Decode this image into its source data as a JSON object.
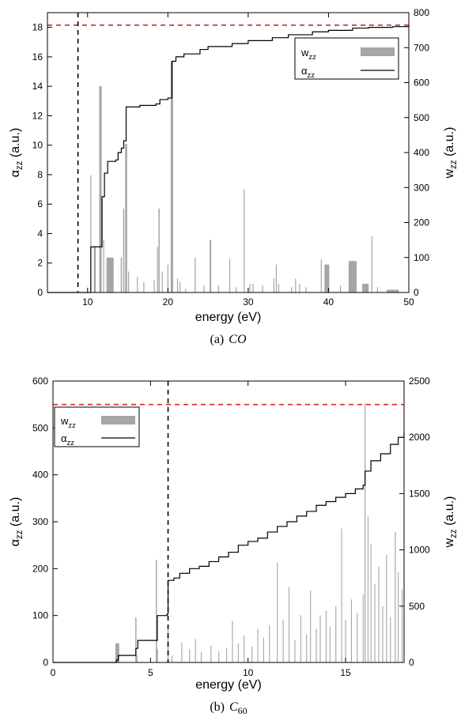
{
  "chart_data": [
    {
      "panel": "(a)",
      "type": "bar",
      "caption_prefix": "(a)",
      "caption_italic": "CO",
      "xlabel": "energy (eV)",
      "ylabel_left": {
        "main": "α",
        "sub": "zz",
        "unit": "(a.u.)"
      },
      "ylabel_right": {
        "main": "w",
        "sub": "zz",
        "unit": "(a.u.)"
      },
      "xlim": [
        5,
        50
      ],
      "ylim_left": [
        0,
        19
      ],
      "ylim_right": [
        0,
        800
      ],
      "xticks": [
        "10",
        "20",
        "30",
        "40",
        "50"
      ],
      "xtick_values": [
        10,
        20,
        30,
        40,
        50
      ],
      "yticks_left": [
        "0",
        "2",
        "4",
        "6",
        "8",
        "10",
        "12",
        "14",
        "16",
        "18"
      ],
      "ytick_values_left": [
        0,
        2,
        4,
        6,
        8,
        10,
        12,
        14,
        16,
        18
      ],
      "yticks_right": [
        "0",
        "100",
        "200",
        "300",
        "400",
        "500",
        "600",
        "700",
        "800"
      ],
      "ytick_values_right": [
        0,
        100,
        200,
        300,
        400,
        500,
        600,
        700,
        800
      ],
      "legend": {
        "position": "top-right",
        "entries": [
          {
            "main": "w",
            "sub": "zz",
            "kind": "bar"
          },
          {
            "main": "α",
            "sub": "zz",
            "kind": "line"
          }
        ]
      },
      "reference_lines": [
        {
          "orientation": "horizontal",
          "axis": "left",
          "value": 18.15,
          "color": "#dd2222",
          "style": "dashed"
        },
        {
          "orientation": "vertical",
          "value": 8.8,
          "color": "#000000",
          "style": "dashed"
        }
      ],
      "bar_color": "#a6a6a6",
      "line_color": "#000000",
      "w_zz_bars": [
        {
          "x": 10.4,
          "width": 0.12,
          "y": 335
        },
        {
          "x": 10.9,
          "width": 0.25,
          "y": 130
        },
        {
          "x": 11.6,
          "width": 0.3,
          "y": 590
        },
        {
          "x": 12.0,
          "width": 0.12,
          "y": 150
        },
        {
          "x": 12.8,
          "width": 0.9,
          "y": 100
        },
        {
          "x": 14.2,
          "width": 0.15,
          "y": 100
        },
        {
          "x": 14.5,
          "width": 0.15,
          "y": 240
        },
        {
          "x": 14.8,
          "width": 0.25,
          "y": 425
        },
        {
          "x": 15.1,
          "width": 0.12,
          "y": 60
        },
        {
          "x": 16.2,
          "width": 0.12,
          "y": 45
        },
        {
          "x": 17.0,
          "width": 0.12,
          "y": 30
        },
        {
          "x": 18.3,
          "width": 0.12,
          "y": 35
        },
        {
          "x": 18.7,
          "width": 0.12,
          "y": 130
        },
        {
          "x": 18.9,
          "width": 0.15,
          "y": 240
        },
        {
          "x": 19.3,
          "width": 0.12,
          "y": 60
        },
        {
          "x": 20.0,
          "width": 0.12,
          "y": 80
        },
        {
          "x": 20.5,
          "width": 0.3,
          "y": 660
        },
        {
          "x": 21.2,
          "width": 0.12,
          "y": 40
        },
        {
          "x": 21.5,
          "width": 0.12,
          "y": 30
        },
        {
          "x": 22.2,
          "width": 0.12,
          "y": 10
        },
        {
          "x": 23.4,
          "width": 0.12,
          "y": 100
        },
        {
          "x": 24.5,
          "width": 0.12,
          "y": 20
        },
        {
          "x": 25.3,
          "width": 0.2,
          "y": 150
        },
        {
          "x": 26.3,
          "width": 0.12,
          "y": 20
        },
        {
          "x": 27.7,
          "width": 0.12,
          "y": 95
        },
        {
          "x": 28.5,
          "width": 0.12,
          "y": 15
        },
        {
          "x": 29.5,
          "width": 0.12,
          "y": 295
        },
        {
          "x": 30.2,
          "width": 0.12,
          "y": 25
        },
        {
          "x": 30.6,
          "width": 0.12,
          "y": 25
        },
        {
          "x": 31.8,
          "width": 0.12,
          "y": 20
        },
        {
          "x": 33.2,
          "width": 0.12,
          "y": 40
        },
        {
          "x": 33.5,
          "width": 0.12,
          "y": 80
        },
        {
          "x": 33.8,
          "width": 0.12,
          "y": 25
        },
        {
          "x": 35.4,
          "width": 0.12,
          "y": 15
        },
        {
          "x": 35.9,
          "width": 0.12,
          "y": 40
        },
        {
          "x": 36.4,
          "width": 0.12,
          "y": 25
        },
        {
          "x": 37.2,
          "width": 0.12,
          "y": 15
        },
        {
          "x": 39.1,
          "width": 0.12,
          "y": 95
        },
        {
          "x": 39.8,
          "width": 0.6,
          "y": 80
        },
        {
          "x": 41.5,
          "width": 0.12,
          "y": 20
        },
        {
          "x": 43.0,
          "width": 1.0,
          "y": 90
        },
        {
          "x": 44.6,
          "width": 0.8,
          "y": 25
        },
        {
          "x": 45.4,
          "width": 0.12,
          "y": 160
        },
        {
          "x": 46.1,
          "width": 0.12,
          "y": 15
        },
        {
          "x": 48.0,
          "width": 1.5,
          "y": 8
        }
      ],
      "alpha_zz_step": [
        [
          5,
          0
        ],
        [
          10.4,
          0
        ],
        [
          10.4,
          3.1
        ],
        [
          11.5,
          3.1
        ],
        [
          11.8,
          6.5
        ],
        [
          12.1,
          8.1
        ],
        [
          12.5,
          8.9
        ],
        [
          13.5,
          9.0
        ],
        [
          13.8,
          9.5
        ],
        [
          14.2,
          9.8
        ],
        [
          14.5,
          10.3
        ],
        [
          14.8,
          12.6
        ],
        [
          16.5,
          12.7
        ],
        [
          18.5,
          12.8
        ],
        [
          19.0,
          13.1
        ],
        [
          20.0,
          13.2
        ],
        [
          20.5,
          15.7
        ],
        [
          21.0,
          16.0
        ],
        [
          22.0,
          16.2
        ],
        [
          24.0,
          16.5
        ],
        [
          25.0,
          16.7
        ],
        [
          28.0,
          16.9
        ],
        [
          30.0,
          17.1
        ],
        [
          33.0,
          17.3
        ],
        [
          35.0,
          17.5
        ],
        [
          38.0,
          17.7
        ],
        [
          40.0,
          17.8
        ],
        [
          43.0,
          17.95
        ],
        [
          45.0,
          18.0
        ],
        [
          48.0,
          18.05
        ],
        [
          50.0,
          18.1
        ]
      ]
    },
    {
      "panel": "(b)",
      "type": "bar",
      "caption_prefix": "(b)",
      "caption_italic": "C",
      "caption_sub": "60",
      "xlabel": "energy (eV)",
      "ylabel_left": {
        "main": "α",
        "sub": "zz",
        "unit": "(a.u.)"
      },
      "ylabel_right": {
        "main": "w",
        "sub": "zz",
        "unit": "(a.u.)"
      },
      "xlim": [
        0,
        18
      ],
      "ylim_left": [
        0,
        600
      ],
      "ylim_right": [
        0,
        2500
      ],
      "xticks": [
        "0",
        "5",
        "10",
        "15"
      ],
      "xtick_values": [
        0,
        5,
        10,
        15
      ],
      "yticks_left": [
        "0",
        "100",
        "200",
        "300",
        "400",
        "500",
        "600"
      ],
      "ytick_values_left": [
        0,
        100,
        200,
        300,
        400,
        500,
        600
      ],
      "yticks_right": [
        "0",
        "500",
        "1000",
        "1500",
        "2000",
        "2500"
      ],
      "ytick_values_right": [
        0,
        500,
        1000,
        1500,
        2000,
        2500
      ],
      "legend": {
        "position": "top-left",
        "entries": [
          {
            "main": "w",
            "sub": "zz",
            "kind": "bar"
          },
          {
            "main": "α",
            "sub": "zz",
            "kind": "line"
          }
        ]
      },
      "reference_lines": [
        {
          "orientation": "horizontal",
          "axis": "left",
          "value": 550,
          "color": "#dd2222",
          "style": "dashed"
        },
        {
          "orientation": "vertical",
          "value": 5.9,
          "color": "#000000",
          "style": "dashed"
        }
      ],
      "bar_color": "#a6a6a6",
      "line_color": "#000000",
      "w_zz_bars": [
        {
          "x": 3.3,
          "width": 0.2,
          "y": 170
        },
        {
          "x": 4.25,
          "width": 0.06,
          "y": 400
        },
        {
          "x": 4.3,
          "width": 0.06,
          "y": 60
        },
        {
          "x": 5.3,
          "width": 0.06,
          "y": 910
        },
        {
          "x": 5.35,
          "width": 0.06,
          "y": 120
        },
        {
          "x": 5.9,
          "width": 0.06,
          "y": 290
        },
        {
          "x": 6.1,
          "width": 0.04,
          "y": 60
        },
        {
          "x": 6.6,
          "width": 0.04,
          "y": 180
        },
        {
          "x": 7.0,
          "width": 0.04,
          "y": 120
        },
        {
          "x": 7.3,
          "width": 0.04,
          "y": 210
        },
        {
          "x": 7.6,
          "width": 0.04,
          "y": 90
        },
        {
          "x": 8.1,
          "width": 0.04,
          "y": 150
        },
        {
          "x": 8.5,
          "width": 0.04,
          "y": 100
        },
        {
          "x": 8.9,
          "width": 0.04,
          "y": 130
        },
        {
          "x": 9.2,
          "width": 0.04,
          "y": 370
        },
        {
          "x": 9.5,
          "width": 0.04,
          "y": 170
        },
        {
          "x": 9.8,
          "width": 0.04,
          "y": 240
        },
        {
          "x": 10.2,
          "width": 0.04,
          "y": 140
        },
        {
          "x": 10.5,
          "width": 0.04,
          "y": 300
        },
        {
          "x": 10.8,
          "width": 0.04,
          "y": 220
        },
        {
          "x": 11.1,
          "width": 0.04,
          "y": 330
        },
        {
          "x": 11.5,
          "width": 0.04,
          "y": 890
        },
        {
          "x": 11.8,
          "width": 0.04,
          "y": 380
        },
        {
          "x": 12.1,
          "width": 0.04,
          "y": 670
        },
        {
          "x": 12.4,
          "width": 0.04,
          "y": 200
        },
        {
          "x": 12.7,
          "width": 0.04,
          "y": 420
        },
        {
          "x": 13.0,
          "width": 0.04,
          "y": 250
        },
        {
          "x": 13.2,
          "width": 0.04,
          "y": 640
        },
        {
          "x": 13.5,
          "width": 0.04,
          "y": 300
        },
        {
          "x": 13.7,
          "width": 0.04,
          "y": 420
        },
        {
          "x": 14.0,
          "width": 0.04,
          "y": 460
        },
        {
          "x": 14.2,
          "width": 0.04,
          "y": 320
        },
        {
          "x": 14.5,
          "width": 0.04,
          "y": 500
        },
        {
          "x": 14.8,
          "width": 0.04,
          "y": 1190
        },
        {
          "x": 15.0,
          "width": 0.04,
          "y": 380
        },
        {
          "x": 15.3,
          "width": 0.04,
          "y": 560
        },
        {
          "x": 15.6,
          "width": 0.04,
          "y": 440
        },
        {
          "x": 15.9,
          "width": 0.04,
          "y": 600
        },
        {
          "x": 16.0,
          "width": 0.05,
          "y": 2300
        },
        {
          "x": 16.15,
          "width": 0.04,
          "y": 1300
        },
        {
          "x": 16.3,
          "width": 0.04,
          "y": 1050
        },
        {
          "x": 16.5,
          "width": 0.04,
          "y": 700
        },
        {
          "x": 16.7,
          "width": 0.04,
          "y": 850
        },
        {
          "x": 16.9,
          "width": 0.04,
          "y": 500
        },
        {
          "x": 17.1,
          "width": 0.04,
          "y": 960
        },
        {
          "x": 17.3,
          "width": 0.04,
          "y": 400
        },
        {
          "x": 17.55,
          "width": 0.05,
          "y": 1160
        },
        {
          "x": 17.7,
          "width": 0.04,
          "y": 800
        },
        {
          "x": 17.9,
          "width": 0.04,
          "y": 650
        }
      ],
      "alpha_zz_step": [
        [
          0,
          0
        ],
        [
          3.0,
          0
        ],
        [
          3.25,
          5
        ],
        [
          3.35,
          15
        ],
        [
          4.2,
          15
        ],
        [
          4.25,
          30
        ],
        [
          4.35,
          47
        ],
        [
          5.3,
          47
        ],
        [
          5.35,
          100
        ],
        [
          5.85,
          103
        ],
        [
          5.9,
          175
        ],
        [
          6.2,
          180
        ],
        [
          6.5,
          190
        ],
        [
          7.0,
          200
        ],
        [
          7.5,
          205
        ],
        [
          8.0,
          215
        ],
        [
          8.5,
          225
        ],
        [
          9.0,
          235
        ],
        [
          9.5,
          250
        ],
        [
          10.0,
          258
        ],
        [
          10.5,
          265
        ],
        [
          11.0,
          278
        ],
        [
          11.5,
          290
        ],
        [
          12.0,
          300
        ],
        [
          12.5,
          312
        ],
        [
          13.0,
          322
        ],
        [
          13.5,
          335
        ],
        [
          14.0,
          343
        ],
        [
          14.5,
          352
        ],
        [
          15.0,
          360
        ],
        [
          15.5,
          370
        ],
        [
          15.9,
          378
        ],
        [
          16.0,
          408
        ],
        [
          16.3,
          430
        ],
        [
          16.8,
          445
        ],
        [
          17.3,
          465
        ],
        [
          17.7,
          480
        ],
        [
          18.0,
          492
        ]
      ]
    }
  ]
}
